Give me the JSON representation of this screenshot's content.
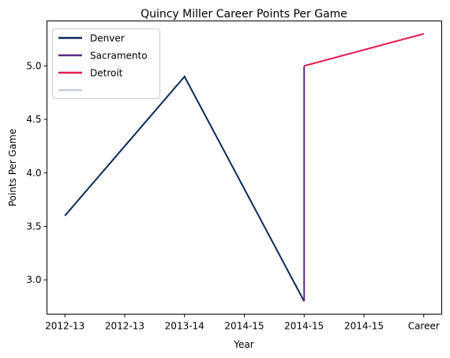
{
  "chart_data": {
    "type": "line",
    "title": "Quincy Miller Career Points Per Game",
    "xlabel": "Year",
    "ylabel": "Points Per Game",
    "x_tick_labels": [
      "2012-13",
      "2012-13",
      "2013-14",
      "2014-15",
      "2014-15",
      "2014-15",
      "Career"
    ],
    "y_ticks": [
      3.0,
      3.5,
      4.0,
      4.5,
      5.0
    ],
    "ylim": [
      2.68,
      5.42
    ],
    "grid": false,
    "legend_position": "top-left",
    "series": [
      {
        "name": "Denver",
        "color": "#0b2a5b",
        "points": [
          {
            "x": 0,
            "y": 3.6
          },
          {
            "x": 2,
            "y": 4.9
          },
          {
            "x": 4,
            "y": 2.8
          }
        ]
      },
      {
        "name": "Sacramento",
        "color": "#5b2c83",
        "points": [
          {
            "x": 4,
            "y": 2.8
          },
          {
            "x": 4,
            "y": 5.0
          }
        ]
      },
      {
        "name": "Detroit",
        "color": "#e31f52",
        "points": [
          {
            "x": 4,
            "y": 5.0
          },
          {
            "x": 6,
            "y": 5.3
          }
        ]
      },
      {
        "name": "",
        "color": "#c4ced4",
        "points": []
      }
    ]
  }
}
